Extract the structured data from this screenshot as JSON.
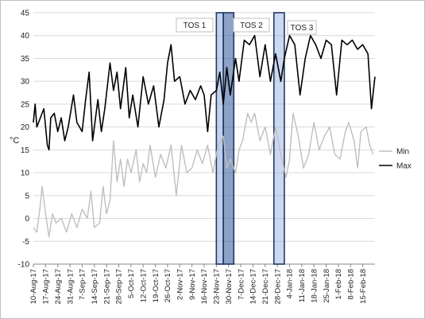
{
  "chart_data": {
    "type": "line",
    "title": "",
    "xlabel": "",
    "ylabel": "°C",
    "ylim": [
      -10,
      45
    ],
    "yticks": [
      -10,
      -5,
      0,
      5,
      10,
      15,
      20,
      25,
      30,
      35,
      40,
      45
    ],
    "grid": "horizontal",
    "legend_position": "right",
    "x_start": "2017-08-10",
    "x_end": "2018-02-22",
    "xtick_labels": [
      "10-Aug-17",
      "17-Aug-17",
      "24-Aug-17",
      "31-Aug-17",
      "7-Sep-17",
      "14-Sep-17",
      "21-Sep-17",
      "28-Sep-17",
      "5-Oct-17",
      "12-Oct-17",
      "19-Oct-17",
      "26-Oct-17",
      "2-Nov-17",
      "9-Nov-17",
      "16-Nov-17",
      "23-Nov-17",
      "30-Nov-17",
      "7-Dec-17",
      "14-Dec-17",
      "21-Dec-17",
      "28-Dec-17",
      "4-Jan-18",
      "11-Jan-18",
      "18-Jan-18",
      "25-Jan-18",
      "1-Feb-18",
      "8-Feb-18",
      "15-Feb-18"
    ],
    "annotations": [
      {
        "label": "TOS 1",
        "start": "2017-11-23",
        "end": "2017-11-27"
      },
      {
        "label": "TOS 2",
        "start": "2017-11-27",
        "end": "2017-12-03"
      },
      {
        "label": "TOS 3",
        "start": "2017-12-26",
        "end": "2018-01-01"
      }
    ],
    "series": [
      {
        "name": "Min",
        "color": "#bfbfbf",
        "values": [
          {
            "x": "2017-08-10",
            "y": -2
          },
          {
            "x": "2017-08-12",
            "y": -3
          },
          {
            "x": "2017-08-14",
            "y": 3
          },
          {
            "x": "2017-08-15",
            "y": 7
          },
          {
            "x": "2017-08-17",
            "y": 1
          },
          {
            "x": "2017-08-19",
            "y": -4
          },
          {
            "x": "2017-08-21",
            "y": 1
          },
          {
            "x": "2017-08-23",
            "y": -1
          },
          {
            "x": "2017-08-26",
            "y": 0
          },
          {
            "x": "2017-08-29",
            "y": -3
          },
          {
            "x": "2017-09-01",
            "y": 1
          },
          {
            "x": "2017-09-04",
            "y": -2
          },
          {
            "x": "2017-09-07",
            "y": 2
          },
          {
            "x": "2017-09-10",
            "y": 0
          },
          {
            "x": "2017-09-12",
            "y": 6
          },
          {
            "x": "2017-09-14",
            "y": -2
          },
          {
            "x": "2017-09-17",
            "y": -1
          },
          {
            "x": "2017-09-19",
            "y": 7
          },
          {
            "x": "2017-09-21",
            "y": 1
          },
          {
            "x": "2017-09-23",
            "y": 4
          },
          {
            "x": "2017-09-25",
            "y": 17
          },
          {
            "x": "2017-09-27",
            "y": 8
          },
          {
            "x": "2017-09-29",
            "y": 13
          },
          {
            "x": "2017-10-01",
            "y": 7
          },
          {
            "x": "2017-10-03",
            "y": 13
          },
          {
            "x": "2017-10-05",
            "y": 10
          },
          {
            "x": "2017-10-08",
            "y": 15
          },
          {
            "x": "2017-10-10",
            "y": 8
          },
          {
            "x": "2017-10-12",
            "y": 12
          },
          {
            "x": "2017-10-14",
            "y": 10
          },
          {
            "x": "2017-10-16",
            "y": 16
          },
          {
            "x": "2017-10-19",
            "y": 9
          },
          {
            "x": "2017-10-22",
            "y": 14
          },
          {
            "x": "2017-10-25",
            "y": 11
          },
          {
            "x": "2017-10-28",
            "y": 16
          },
          {
            "x": "2017-10-31",
            "y": 5
          },
          {
            "x": "2017-11-03",
            "y": 16
          },
          {
            "x": "2017-11-06",
            "y": 10
          },
          {
            "x": "2017-11-09",
            "y": 11
          },
          {
            "x": "2017-11-12",
            "y": 15
          },
          {
            "x": "2017-11-15",
            "y": 12
          },
          {
            "x": "2017-11-18",
            "y": 16
          },
          {
            "x": "2017-11-21",
            "y": 10
          },
          {
            "x": "2017-11-24",
            "y": 16
          },
          {
            "x": "2017-11-27",
            "y": 18
          },
          {
            "x": "2017-11-29",
            "y": 11
          },
          {
            "x": "2017-12-01",
            "y": 13
          },
          {
            "x": "2017-12-04",
            "y": 10
          },
          {
            "x": "2017-12-06",
            "y": 15
          },
          {
            "x": "2017-12-08",
            "y": 17
          },
          {
            "x": "2017-12-11",
            "y": 23
          },
          {
            "x": "2017-12-13",
            "y": 21
          },
          {
            "x": "2017-12-15",
            "y": 23
          },
          {
            "x": "2017-12-18",
            "y": 17
          },
          {
            "x": "2017-12-21",
            "y": 20
          },
          {
            "x": "2017-12-24",
            "y": 14
          },
          {
            "x": "2017-12-27",
            "y": 20
          },
          {
            "x": "2017-12-30",
            "y": 14
          },
          {
            "x": "2018-01-02",
            "y": 9
          },
          {
            "x": "2018-01-04",
            "y": 13
          },
          {
            "x": "2018-01-06",
            "y": 23
          },
          {
            "x": "2018-01-09",
            "y": 18
          },
          {
            "x": "2018-01-12",
            "y": 11
          },
          {
            "x": "2018-01-15",
            "y": 14
          },
          {
            "x": "2018-01-18",
            "y": 21
          },
          {
            "x": "2018-01-21",
            "y": 15
          },
          {
            "x": "2018-01-24",
            "y": 18
          },
          {
            "x": "2018-01-27",
            "y": 20
          },
          {
            "x": "2018-01-30",
            "y": 14
          },
          {
            "x": "2018-02-02",
            "y": 13
          },
          {
            "x": "2018-02-05",
            "y": 19
          },
          {
            "x": "2018-02-07",
            "y": 21
          },
          {
            "x": "2018-02-10",
            "y": 17
          },
          {
            "x": "2018-02-12",
            "y": 11
          },
          {
            "x": "2018-02-14",
            "y": 19
          },
          {
            "x": "2018-02-17",
            "y": 20
          },
          {
            "x": "2018-02-19",
            "y": 16
          },
          {
            "x": "2018-02-21",
            "y": 14
          }
        ]
      },
      {
        "name": "Max",
        "color": "#000000",
        "values": [
          {
            "x": "2017-08-10",
            "y": 21
          },
          {
            "x": "2017-08-11",
            "y": 25
          },
          {
            "x": "2017-08-12",
            "y": 20
          },
          {
            "x": "2017-08-14",
            "y": 22
          },
          {
            "x": "2017-08-16",
            "y": 24
          },
          {
            "x": "2017-08-18",
            "y": 16
          },
          {
            "x": "2017-08-19",
            "y": 15
          },
          {
            "x": "2017-08-20",
            "y": 22
          },
          {
            "x": "2017-08-22",
            "y": 23
          },
          {
            "x": "2017-08-24",
            "y": 19
          },
          {
            "x": "2017-08-26",
            "y": 22
          },
          {
            "x": "2017-08-28",
            "y": 17
          },
          {
            "x": "2017-08-30",
            "y": 20
          },
          {
            "x": "2017-09-02",
            "y": 27
          },
          {
            "x": "2017-09-04",
            "y": 21
          },
          {
            "x": "2017-09-07",
            "y": 19
          },
          {
            "x": "2017-09-09",
            "y": 26
          },
          {
            "x": "2017-09-11",
            "y": 32
          },
          {
            "x": "2017-09-13",
            "y": 17
          },
          {
            "x": "2017-09-16",
            "y": 26
          },
          {
            "x": "2017-09-18",
            "y": 19
          },
          {
            "x": "2017-09-20",
            "y": 24
          },
          {
            "x": "2017-09-23",
            "y": 34
          },
          {
            "x": "2017-09-25",
            "y": 28
          },
          {
            "x": "2017-09-27",
            "y": 32
          },
          {
            "x": "2017-09-29",
            "y": 24
          },
          {
            "x": "2017-10-02",
            "y": 33
          },
          {
            "x": "2017-10-04",
            "y": 22
          },
          {
            "x": "2017-10-06",
            "y": 27
          },
          {
            "x": "2017-10-09",
            "y": 20
          },
          {
            "x": "2017-10-12",
            "y": 31
          },
          {
            "x": "2017-10-15",
            "y": 25
          },
          {
            "x": "2017-10-18",
            "y": 29
          },
          {
            "x": "2017-10-21",
            "y": 20
          },
          {
            "x": "2017-10-24",
            "y": 26
          },
          {
            "x": "2017-10-26",
            "y": 34
          },
          {
            "x": "2017-10-28",
            "y": 38
          },
          {
            "x": "2017-10-30",
            "y": 30
          },
          {
            "x": "2017-11-02",
            "y": 31
          },
          {
            "x": "2017-11-05",
            "y": 25
          },
          {
            "x": "2017-11-08",
            "y": 28
          },
          {
            "x": "2017-11-11",
            "y": 26
          },
          {
            "x": "2017-11-14",
            "y": 29
          },
          {
            "x": "2017-11-16",
            "y": 27
          },
          {
            "x": "2017-11-18",
            "y": 19
          },
          {
            "x": "2017-11-20",
            "y": 27
          },
          {
            "x": "2017-11-23",
            "y": 28
          },
          {
            "x": "2017-11-25",
            "y": 32
          },
          {
            "x": "2017-11-27",
            "y": 25
          },
          {
            "x": "2017-11-29",
            "y": 33
          },
          {
            "x": "2017-12-01",
            "y": 27
          },
          {
            "x": "2017-12-04",
            "y": 35
          },
          {
            "x": "2017-12-06",
            "y": 30
          },
          {
            "x": "2017-12-09",
            "y": 39
          },
          {
            "x": "2017-12-12",
            "y": 38
          },
          {
            "x": "2017-12-15",
            "y": 40
          },
          {
            "x": "2017-12-18",
            "y": 31
          },
          {
            "x": "2017-12-21",
            "y": 38
          },
          {
            "x": "2017-12-24",
            "y": 30
          },
          {
            "x": "2017-12-27",
            "y": 36
          },
          {
            "x": "2017-12-30",
            "y": 30
          },
          {
            "x": "2018-01-01",
            "y": 35
          },
          {
            "x": "2018-01-04",
            "y": 40
          },
          {
            "x": "2018-01-07",
            "y": 38
          },
          {
            "x": "2018-01-10",
            "y": 27
          },
          {
            "x": "2018-01-13",
            "y": 35
          },
          {
            "x": "2018-01-16",
            "y": 40
          },
          {
            "x": "2018-01-19",
            "y": 38
          },
          {
            "x": "2018-01-22",
            "y": 35
          },
          {
            "x": "2018-01-25",
            "y": 39
          },
          {
            "x": "2018-01-28",
            "y": 38
          },
          {
            "x": "2018-01-31",
            "y": 27
          },
          {
            "x": "2018-02-03",
            "y": 39
          },
          {
            "x": "2018-02-06",
            "y": 38
          },
          {
            "x": "2018-02-09",
            "y": 39
          },
          {
            "x": "2018-02-12",
            "y": 37
          },
          {
            "x": "2018-02-15",
            "y": 38
          },
          {
            "x": "2018-02-18",
            "y": 36
          },
          {
            "x": "2018-02-20",
            "y": 24
          },
          {
            "x": "2018-02-22",
            "y": 31
          }
        ]
      }
    ]
  }
}
